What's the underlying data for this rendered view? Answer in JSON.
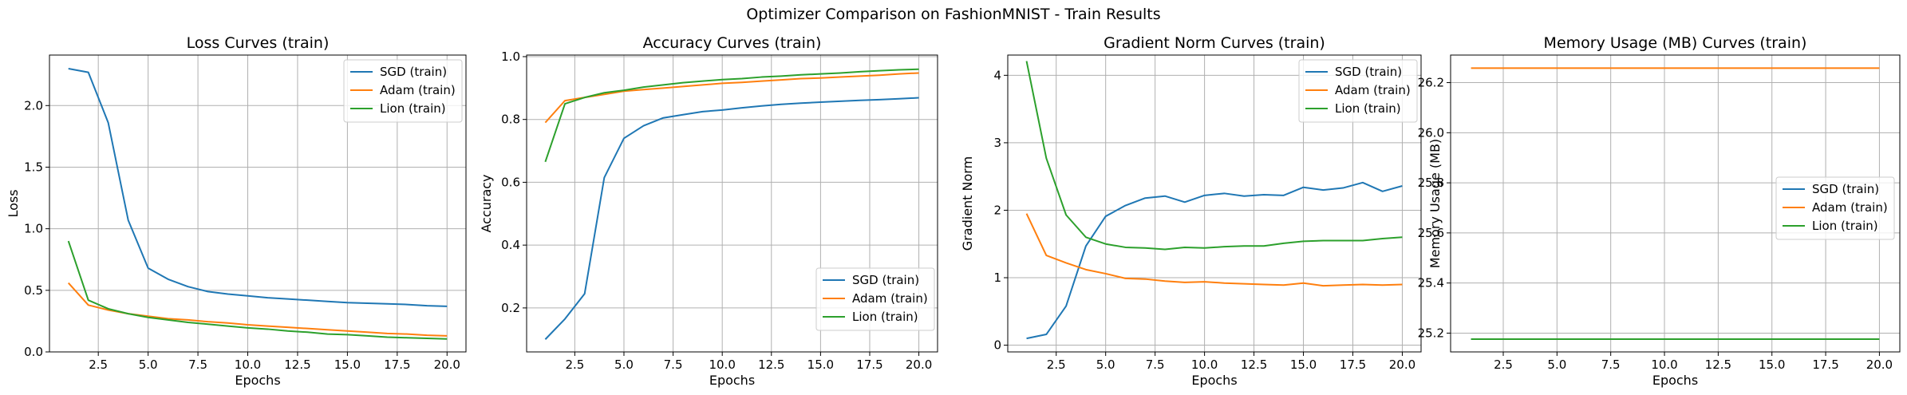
{
  "figure": {
    "suptitle": "Optimizer Comparison on FashionMNIST - Train Results"
  },
  "colors": {
    "sgd": "#1f77b4",
    "adam": "#ff7f0e",
    "lion": "#2ca02c",
    "grid": "#b0b0b0"
  },
  "chart_data": [
    {
      "type": "line",
      "title": "Loss Curves (train)",
      "xlabel": "Epochs",
      "ylabel": "Loss",
      "xlim": [
        0.05,
        20.95
      ],
      "ylim": [
        0.0,
        2.41
      ],
      "xticks": [
        2.5,
        5.0,
        7.5,
        10.0,
        12.5,
        15.0,
        17.5,
        20.0
      ],
      "xtick_labels": [
        "2.5",
        "5.0",
        "7.5",
        "10.0",
        "12.5",
        "15.0",
        "17.5",
        "20.0"
      ],
      "yticks": [
        0.0,
        0.5,
        1.0,
        1.5,
        2.0
      ],
      "ytick_labels": [
        "0.0",
        "0.5",
        "1.0",
        "1.5",
        "2.0"
      ],
      "grid": true,
      "legend": "upper right",
      "x": [
        1,
        2,
        3,
        4,
        5,
        6,
        7,
        8,
        9,
        10,
        11,
        12,
        13,
        14,
        15,
        16,
        17,
        18,
        19,
        20
      ],
      "series": [
        {
          "name": "SGD (train)",
          "color": "#1f77b4",
          "values": [
            2.3,
            2.27,
            1.86,
            1.07,
            0.68,
            0.59,
            0.53,
            0.49,
            0.47,
            0.455,
            0.44,
            0.43,
            0.42,
            0.41,
            0.4,
            0.395,
            0.39,
            0.385,
            0.375,
            0.37
          ]
        },
        {
          "name": "Adam (train)",
          "color": "#ff7f0e",
          "values": [
            0.56,
            0.38,
            0.34,
            0.31,
            0.29,
            0.27,
            0.26,
            0.245,
            0.235,
            0.22,
            0.21,
            0.2,
            0.19,
            0.18,
            0.17,
            0.16,
            0.15,
            0.145,
            0.135,
            0.13
          ]
        },
        {
          "name": "Lion (train)",
          "color": "#2ca02c",
          "values": [
            0.9,
            0.42,
            0.35,
            0.31,
            0.28,
            0.26,
            0.24,
            0.225,
            0.21,
            0.195,
            0.185,
            0.17,
            0.16,
            0.145,
            0.14,
            0.13,
            0.12,
            0.115,
            0.11,
            0.105
          ]
        }
      ]
    },
    {
      "type": "line",
      "title": "Accuracy Curves (train)",
      "xlabel": "Epochs",
      "ylabel": "Accuracy",
      "xlim": [
        0.05,
        20.95
      ],
      "ylim": [
        0.06,
        1.005
      ],
      "xticks": [
        2.5,
        5.0,
        7.5,
        10.0,
        12.5,
        15.0,
        17.5,
        20.0
      ],
      "xtick_labels": [
        "2.5",
        "5.0",
        "7.5",
        "10.0",
        "12.5",
        "15.0",
        "17.5",
        "20.0"
      ],
      "yticks": [
        0.2,
        0.4,
        0.6,
        0.8,
        1.0
      ],
      "ytick_labels": [
        "0.2",
        "0.4",
        "0.6",
        "0.8",
        "1.0"
      ],
      "grid": true,
      "legend": "lower right",
      "x": [
        1,
        2,
        3,
        4,
        5,
        6,
        7,
        8,
        9,
        10,
        11,
        12,
        13,
        14,
        15,
        16,
        17,
        18,
        19,
        20
      ],
      "series": [
        {
          "name": "SGD (train)",
          "color": "#1f77b4",
          "values": [
            0.1,
            0.165,
            0.245,
            0.615,
            0.74,
            0.78,
            0.805,
            0.815,
            0.825,
            0.83,
            0.837,
            0.843,
            0.848,
            0.852,
            0.855,
            0.858,
            0.861,
            0.863,
            0.866,
            0.869
          ]
        },
        {
          "name": "Adam (train)",
          "color": "#ff7f0e",
          "values": [
            0.79,
            0.86,
            0.87,
            0.88,
            0.89,
            0.895,
            0.9,
            0.905,
            0.91,
            0.915,
            0.918,
            0.922,
            0.926,
            0.93,
            0.932,
            0.935,
            0.938,
            0.941,
            0.945,
            0.948
          ]
        },
        {
          "name": "Lion (train)",
          "color": "#2ca02c",
          "values": [
            0.665,
            0.85,
            0.87,
            0.885,
            0.893,
            0.903,
            0.91,
            0.917,
            0.922,
            0.927,
            0.93,
            0.935,
            0.938,
            0.942,
            0.945,
            0.948,
            0.952,
            0.955,
            0.958,
            0.96
          ]
        }
      ]
    },
    {
      "type": "line",
      "title": "Gradient Norm Curves (train)",
      "xlabel": "Epochs",
      "ylabel": "Gradient Norm",
      "xlim": [
        0.05,
        20.95
      ],
      "ylim": [
        -0.1,
        4.3
      ],
      "xticks": [
        2.5,
        5.0,
        7.5,
        10.0,
        12.5,
        15.0,
        17.5,
        20.0
      ],
      "xtick_labels": [
        "2.5",
        "5.0",
        "7.5",
        "10.0",
        "12.5",
        "15.0",
        "17.5",
        "20.0"
      ],
      "yticks": [
        0,
        1,
        2,
        3,
        4
      ],
      "ytick_labels": [
        "0",
        "1",
        "2",
        "3",
        "4"
      ],
      "grid": true,
      "legend": "upper right",
      "x": [
        1,
        2,
        3,
        4,
        5,
        6,
        7,
        8,
        9,
        10,
        11,
        12,
        13,
        14,
        15,
        16,
        17,
        18,
        19,
        20
      ],
      "series": [
        {
          "name": "SGD (train)",
          "color": "#1f77b4",
          "values": [
            0.1,
            0.16,
            0.58,
            1.47,
            1.91,
            2.07,
            2.18,
            2.21,
            2.12,
            2.22,
            2.25,
            2.21,
            2.23,
            2.22,
            2.34,
            2.3,
            2.33,
            2.41,
            2.28,
            2.36
          ]
        },
        {
          "name": "Adam (train)",
          "color": "#ff7f0e",
          "values": [
            1.95,
            1.33,
            1.22,
            1.12,
            1.06,
            0.99,
            0.98,
            0.95,
            0.93,
            0.94,
            0.92,
            0.91,
            0.9,
            0.89,
            0.92,
            0.88,
            0.89,
            0.9,
            0.89,
            0.9
          ]
        },
        {
          "name": "Lion (train)",
          "color": "#2ca02c",
          "values": [
            4.21,
            2.77,
            1.93,
            1.6,
            1.5,
            1.45,
            1.44,
            1.42,
            1.45,
            1.44,
            1.46,
            1.47,
            1.47,
            1.51,
            1.54,
            1.55,
            1.55,
            1.55,
            1.58,
            1.6
          ]
        }
      ]
    },
    {
      "type": "line",
      "title": "Memory Usage (MB) Curves (train)",
      "xlabel": "Epochs",
      "ylabel": "Memory Usage (MB)",
      "xlim": [
        0.05,
        20.95
      ],
      "ylim": [
        25.125,
        26.31
      ],
      "xticks": [
        2.5,
        5.0,
        7.5,
        10.0,
        12.5,
        15.0,
        17.5,
        20.0
      ],
      "xtick_labels": [
        "2.5",
        "5.0",
        "7.5",
        "10.0",
        "12.5",
        "15.0",
        "17.5",
        "20.0"
      ],
      "yticks": [
        25.2,
        25.4,
        25.6,
        25.8,
        26.0,
        26.2
      ],
      "ytick_labels": [
        "25.2",
        "25.4",
        "25.6",
        "25.8",
        "26.0",
        "26.2"
      ],
      "grid": true,
      "legend": "center right",
      "x": [
        1,
        2,
        3,
        4,
        5,
        6,
        7,
        8,
        9,
        10,
        11,
        12,
        13,
        14,
        15,
        16,
        17,
        18,
        19,
        20
      ],
      "series": [
        {
          "name": "SGD (train)",
          "color": "#1f77b4",
          "values": [
            25.176,
            25.176,
            25.176,
            25.176,
            25.176,
            25.176,
            25.176,
            25.176,
            25.176,
            25.176,
            25.176,
            25.176,
            25.176,
            25.176,
            25.176,
            25.176,
            25.176,
            25.176,
            25.176,
            25.176
          ]
        },
        {
          "name": "Adam (train)",
          "color": "#ff7f0e",
          "values": [
            26.258,
            26.258,
            26.258,
            26.258,
            26.258,
            26.258,
            26.258,
            26.258,
            26.258,
            26.258,
            26.258,
            26.258,
            26.258,
            26.258,
            26.258,
            26.258,
            26.258,
            26.258,
            26.258,
            26.258
          ]
        },
        {
          "name": "Lion (train)",
          "color": "#2ca02c",
          "values": [
            25.176,
            25.176,
            25.176,
            25.176,
            25.176,
            25.176,
            25.176,
            25.176,
            25.176,
            25.176,
            25.176,
            25.176,
            25.176,
            25.176,
            25.176,
            25.176,
            25.176,
            25.176,
            25.176,
            25.176
          ]
        }
      ]
    }
  ]
}
